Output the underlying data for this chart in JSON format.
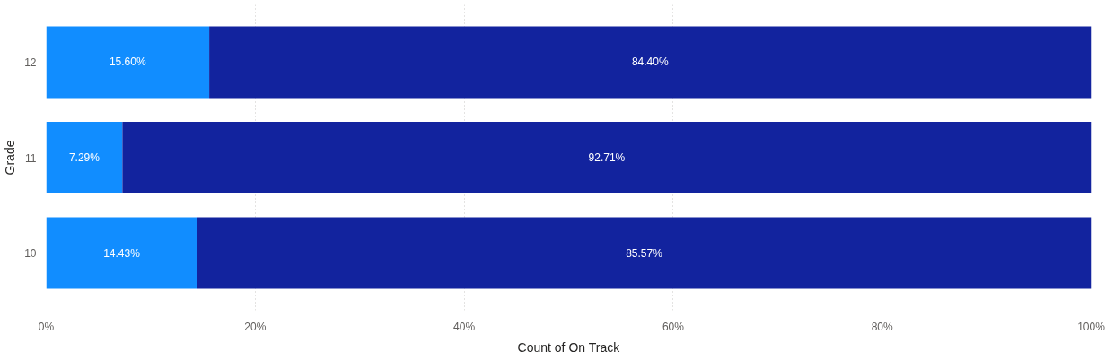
{
  "chart_data": {
    "type": "bar",
    "orientation": "horizontal",
    "stacked": true,
    "xlabel": "Count of On Track",
    "ylabel": "Grade",
    "categories": [
      "12",
      "11",
      "10"
    ],
    "series": [
      {
        "color": "#118dff",
        "values": [
          15.6,
          7.29,
          14.43
        ],
        "value_labels": [
          "15.60%",
          "7.29%",
          "14.43%"
        ]
      },
      {
        "color": "#12239e",
        "values": [
          84.4,
          92.71,
          85.57
        ],
        "value_labels": [
          "84.40%",
          "92.71%",
          "85.57%"
        ]
      }
    ],
    "xlim": [
      0,
      100
    ],
    "xticks": [
      {
        "value": 0,
        "label": "0%"
      },
      {
        "value": 20,
        "label": "20%"
      },
      {
        "value": 40,
        "label": "40%"
      },
      {
        "value": 60,
        "label": "60%"
      },
      {
        "value": 80,
        "label": "80%"
      },
      {
        "value": 100,
        "label": "100%"
      }
    ],
    "grid": "x"
  }
}
